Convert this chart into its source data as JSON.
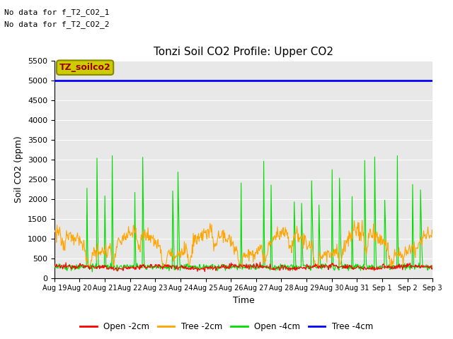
{
  "title": "Tonzi Soil CO2 Profile: Upper CO2",
  "xlabel": "Time",
  "ylabel": "Soil CO2 (ppm)",
  "ylim": [
    0,
    5500
  ],
  "yticks": [
    0,
    500,
    1000,
    1500,
    2000,
    2500,
    3000,
    3500,
    4000,
    4500,
    5000,
    5500
  ],
  "background_color": "#e8e8e8",
  "legend_label": "TZ_soilco2",
  "legend_box_facecolor": "#cccc00",
  "legend_box_edgecolor": "#888800",
  "legend_text_color": "#990000",
  "annotations": [
    "No data for f_T2_CO2_1",
    "No data for f_T2_CO2_2"
  ],
  "tree_4cm_value": 5000,
  "series_colors": {
    "open_2cm": "#ff0000",
    "tree_2cm": "#ffa500",
    "open_4cm": "#00dd00",
    "tree_4cm": "#0000ff"
  },
  "series_labels": {
    "open_2cm": "Open -2cm",
    "tree_2cm": "Tree -2cm",
    "open_4cm": "Open -4cm",
    "tree_4cm": "Tree -4cm"
  },
  "tick_dates": [
    "Aug 19",
    "Aug 20",
    "Aug 21",
    "Aug 22",
    "Aug 23",
    "Aug 24",
    "Aug 25",
    "Aug 26",
    "Aug 27",
    "Aug 28",
    "Aug 29",
    "Aug 30",
    "Aug 31",
    "Sep 1",
    "Sep 2",
    "Sep 3"
  ],
  "num_days": 15,
  "figsize": [
    6.4,
    4.8
  ],
  "dpi": 100
}
